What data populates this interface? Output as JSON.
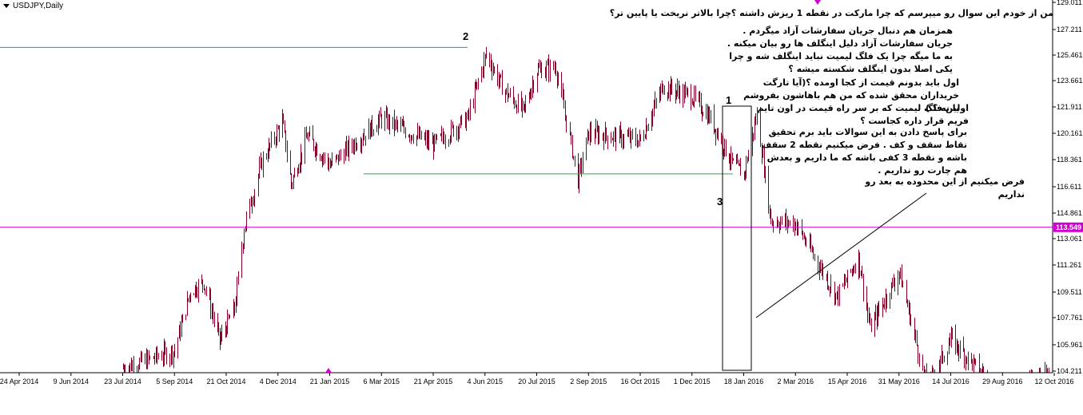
{
  "window": {
    "symbol": "USDJPY,Daily"
  },
  "colors": {
    "candle": "#8b0026",
    "hline_blue": "#1f8fd6",
    "hline_green": "#2ea84a",
    "hline_magenta": "#d000d0",
    "price_tag_bg": "#d000d0",
    "trendline": "#000000"
  },
  "chart_data": {
    "type": "candlestick",
    "title": "USDJPY,Daily",
    "xlabel": "",
    "ylabel": "",
    "ylim": [
      103.6,
      129.1
    ],
    "y_ticks": [
      "129.011",
      "127.211",
      "125.461",
      "123.661",
      "121.911",
      "120.161",
      "118.361",
      "116.611",
      "114.861",
      "113.061",
      "111.261",
      "109.511",
      "107.761",
      "105.961",
      "104.211"
    ],
    "x_ticks": [
      "24 Apr 2014",
      "9 Jun 2014",
      "23 Jul 2014",
      "5 Sep 2014",
      "21 Oct 2014",
      "4 Dec 2014",
      "21 Jan 2015",
      "6 Mar 2015",
      "21 Apr 2015",
      "4 Jun 2015",
      "20 Jul 2015",
      "2 Sep 2015",
      "16 Oct 2015",
      "1 Dec 2015",
      "18 Jan 2016",
      "2 Mar 2016",
      "15 Apr 2016",
      "31 May 2016",
      "14 Jul 2016",
      "29 Aug 2016",
      "12 Oct 2016"
    ],
    "price_path": [
      [
        "23 Jul 2014",
        103.9
      ],
      [
        "5 Sep 2014",
        105.1
      ],
      [
        "19 Sep 2014",
        109.2
      ],
      [
        "1 Oct 2014",
        109.8
      ],
      [
        "15 Oct 2014",
        105.8
      ],
      [
        "28 Oct 2014",
        108.0
      ],
      [
        "5 Nov 2014",
        113.5
      ],
      [
        "20 Nov 2014",
        118.0
      ],
      [
        "8 Dec 2014",
        120.8
      ],
      [
        "16 Dec 2014",
        116.5
      ],
      [
        "31 Dec 2014",
        119.8
      ],
      [
        "21 Jan 2015",
        117.8
      ],
      [
        "6 Mar 2015",
        121.0
      ],
      [
        "21 Apr 2015",
        119.2
      ],
      [
        "20 May 2015",
        121.0
      ],
      [
        "5 Jun 2015",
        125.4
      ],
      [
        "20 Jun 2015",
        123.0
      ],
      [
        "8 Jul 2015",
        121.5
      ],
      [
        "20 Jul 2015",
        124.3
      ],
      [
        "5 Aug 2015",
        124.5
      ],
      [
        "24 Aug 2015",
        116.8
      ],
      [
        "2 Sep 2015",
        120.0
      ],
      [
        "16 Oct 2015",
        119.5
      ],
      [
        "5 Nov 2015",
        123.2
      ],
      [
        "1 Dec 2015",
        122.5
      ],
      [
        "18 Dec 2015",
        121.0
      ],
      [
        "8 Jan 2016",
        117.8
      ],
      [
        "18 Jan 2016",
        117.2
      ],
      [
        "29 Jan 2016",
        121.3
      ],
      [
        "10 Feb 2016",
        114.0
      ],
      [
        "2 Mar 2016",
        113.8
      ],
      [
        "18 Mar 2016",
        111.5
      ],
      [
        "6 Apr 2016",
        108.8
      ],
      [
        "25 Apr 2016",
        111.5
      ],
      [
        "5 May 2016",
        106.6
      ],
      [
        "31 May 2016",
        110.5
      ],
      [
        "24 Jun 2016",
        102.5
      ],
      [
        "14 Jul 2016",
        105.9
      ],
      [
        "29 Aug 2016",
        101.9
      ],
      [
        "12 Oct 2016",
        104.0
      ]
    ],
    "horizontal_lines": [
      {
        "name": "resistance-blue",
        "value": 125.86
      },
      {
        "name": "support-green",
        "value": 117.2
      },
      {
        "name": "current-magenta",
        "value": 113.549
      }
    ],
    "current_price": "113.549",
    "point_labels": [
      "2",
      "1",
      "3"
    ]
  },
  "notes": {
    "n1": "من از خودم این سوال رو میپرسم که چرا مارکت در نقطه 1 ریزش داشته ؟چرا بالاتر نریخت یا پایین تر؟",
    "n2": "همزمان هم دنبال جریان سفارشات آزاد میگردم . جریان سفارشات آزاد دلیل اینگلف ها رو بیان میکنه . به ما میگه چرا یک فلگ لیمیت نباید اینگلف شه و چرا یکی اصلا بدون اینگلف شکسته میشه ؟",
    "n3": "اول باید بدونم قیمت از کجا اومده ؟(آیا تارگت خریداران محقق شده که من هم باهاشون  بفروشم یا نه ؟ )",
    "n4": "اولین فلگ لیمیت که بر سر راه قیمت در اون تایم فریم قرار داره کجاست ؟",
    "n5": "برای پاسخ دادن به این سوالات باید برم تحقیق نقاط سقف و کف . فرض میکنیم نقطه 2 سقف باشه و نقطه 3 کفی باشه که ما داریم و بعدش هم چارت رو نداریم .",
    "n6": "فرض میکنیم از این محدوده به بعد رو نداریم"
  }
}
